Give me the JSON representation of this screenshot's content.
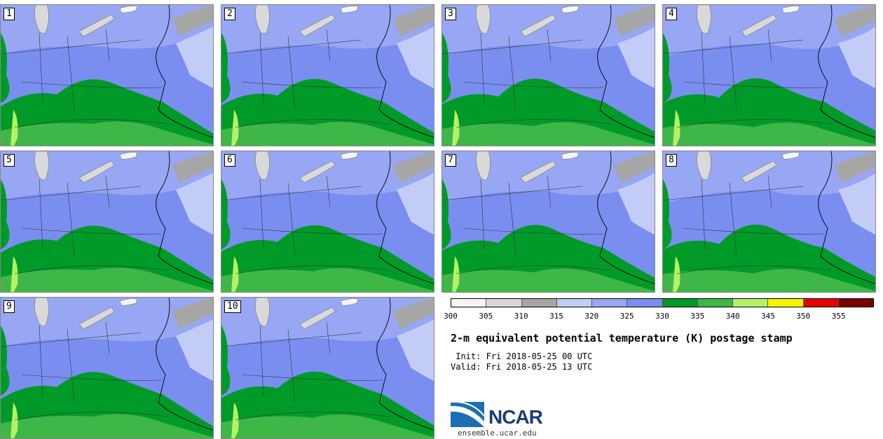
{
  "panels": [
    {
      "label": "1"
    },
    {
      "label": "2"
    },
    {
      "label": "3"
    },
    {
      "label": "4"
    },
    {
      "label": "5"
    },
    {
      "label": "6"
    },
    {
      "label": "7"
    },
    {
      "label": "8"
    },
    {
      "label": "9"
    },
    {
      "label": "10"
    }
  ],
  "colorbar": {
    "colors": [
      "#f4f4f4",
      "#d9d9d9",
      "#a6a6a6",
      "#c3cbf7",
      "#98a7f3",
      "#7a8ef0",
      "#009a28",
      "#3fb748",
      "#b4f265",
      "#f6f400",
      "#e80000",
      "#7e0000"
    ],
    "ticks": [
      "300",
      "305",
      "310",
      "315",
      "320",
      "325",
      "330",
      "335",
      "340",
      "345",
      "350",
      "355"
    ]
  },
  "title": "2-m equivalent potential temperature (K) postage stamp",
  "init": " Init: Fri 2018-05-25 00 UTC",
  "valid": "Valid: Fri 2018-05-25 13 UTC",
  "logo": {
    "name": "NCAR",
    "url": "ensemble.ucar.edu"
  }
}
